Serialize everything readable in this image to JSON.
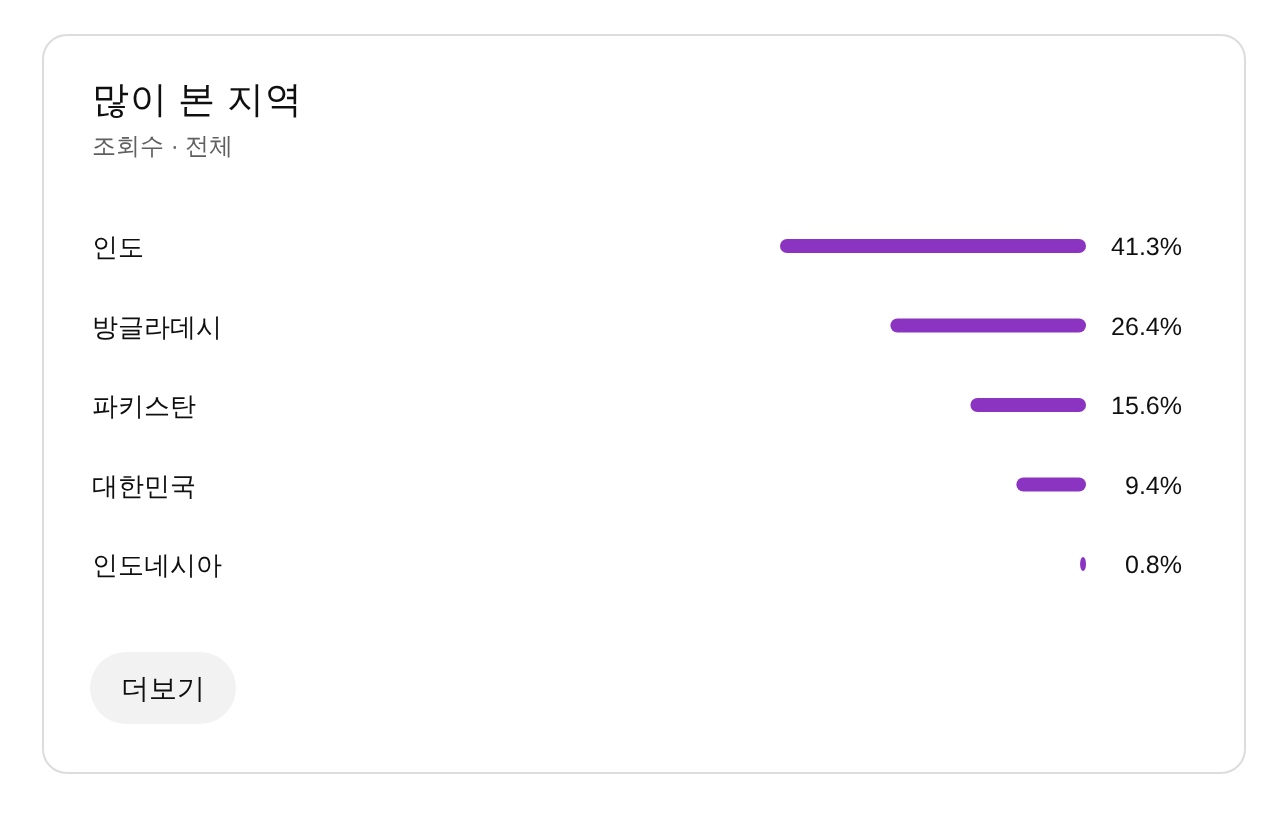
{
  "chart_data": {
    "type": "bar",
    "orientation": "horizontal",
    "title": "많이 본 지역",
    "subtitle": "조회수 · 전체",
    "categories": [
      "인도",
      "방글라데시",
      "파키스탄",
      "대한민국",
      "인도네시아"
    ],
    "values": [
      41.3,
      26.4,
      15.6,
      9.4,
      0.8
    ],
    "value_labels": [
      "41.3%",
      "26.4%",
      "15.6%",
      "9.4%",
      "0.8%"
    ],
    "color": "#8b34c2",
    "annotations": [
      "더보기"
    ]
  }
}
